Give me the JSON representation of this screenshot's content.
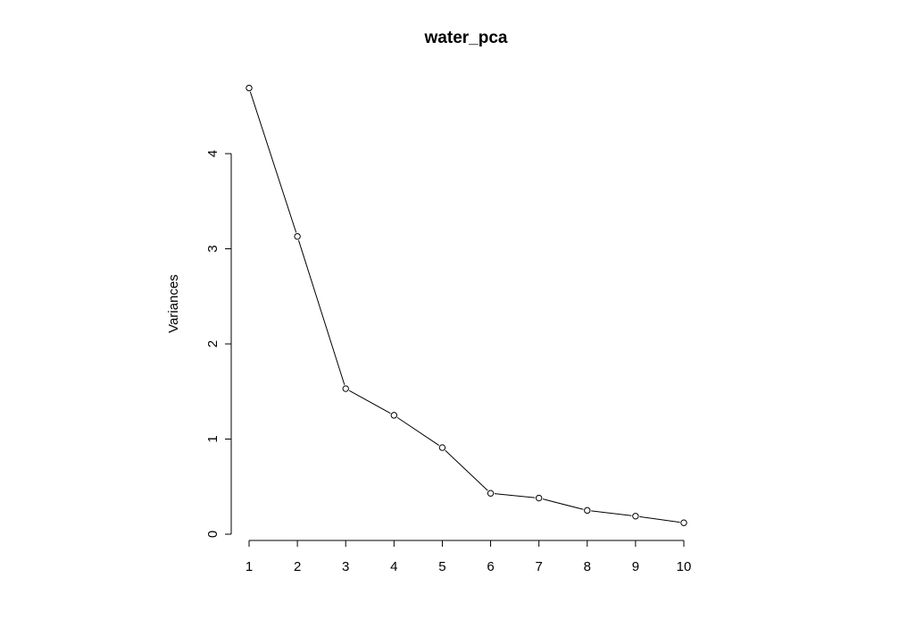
{
  "chart_data": {
    "type": "line",
    "title": "water_pca",
    "xlabel": "",
    "ylabel": "Variances",
    "x": [
      1,
      2,
      3,
      4,
      5,
      6,
      7,
      8,
      9,
      10
    ],
    "series": [
      {
        "values": [
          4.69,
          3.13,
          1.53,
          1.25,
          0.91,
          0.43,
          0.38,
          0.25,
          0.19,
          0.12
        ]
      }
    ],
    "xticks": [
      "1",
      "2",
      "3",
      "4",
      "5",
      "6",
      "7",
      "8",
      "9",
      "10"
    ],
    "yticks": [
      "0",
      "1",
      "2",
      "3",
      "4"
    ],
    "xlim": [
      1,
      10
    ],
    "ylim": [
      0,
      4
    ],
    "grid": false,
    "legend": "none",
    "line_color": "#000000",
    "marker": "open-circle"
  }
}
